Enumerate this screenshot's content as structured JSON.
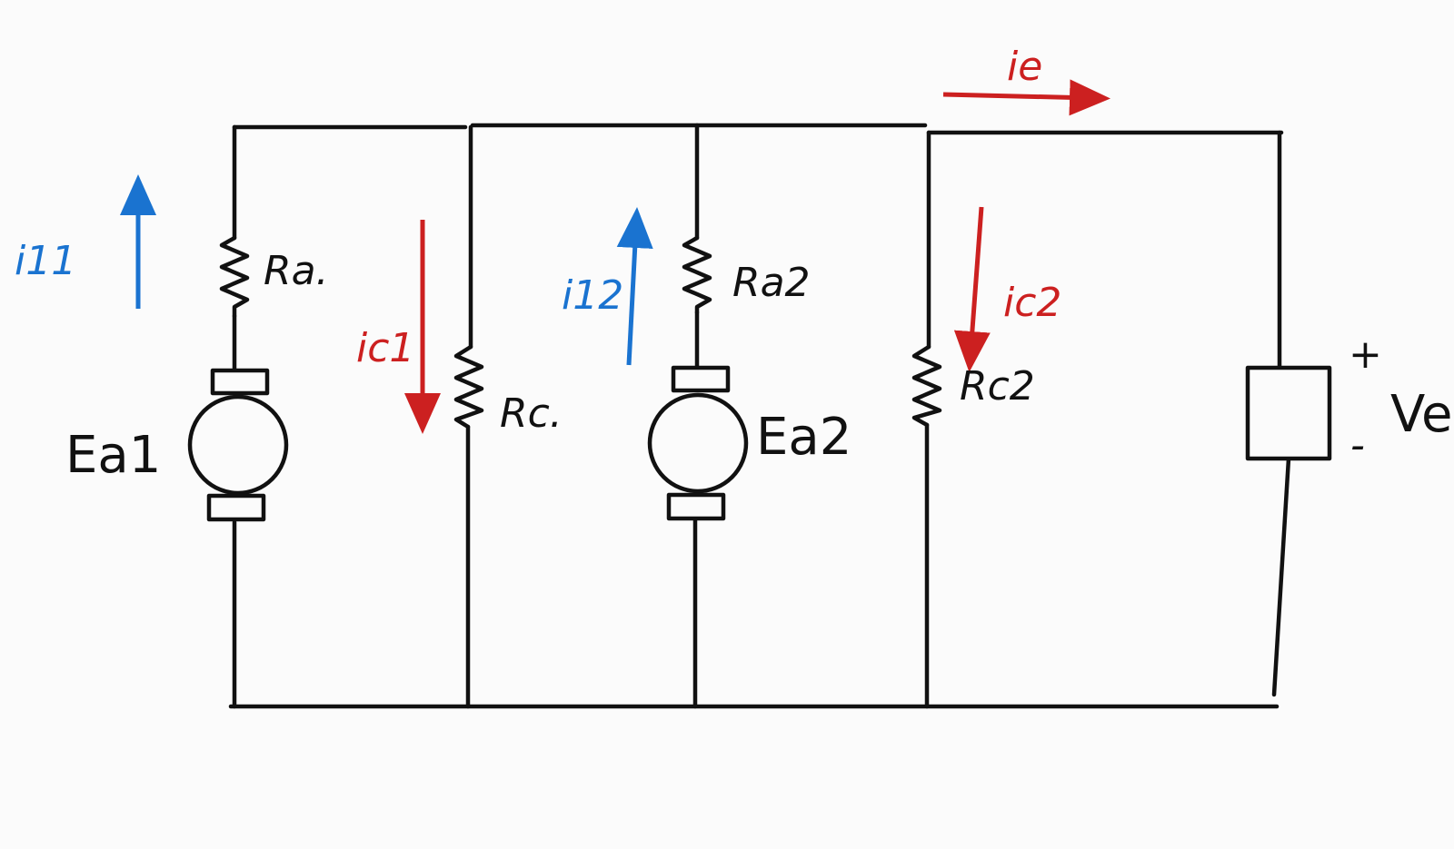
{
  "components": {
    "ra1": "Ra.",
    "ra2": "Ra2",
    "rc1": "Rc.",
    "rc2": "Rc2",
    "ea1": "Ea1",
    "ea2": "Ea2",
    "load": "Ve",
    "plus": "+",
    "minus": "-"
  },
  "currents": {
    "ia1": "i11",
    "ia2": "i12",
    "ic1": "ic1",
    "ic2": "ic2",
    "ie": "ie"
  },
  "colors": {
    "ink": "#111111",
    "armature_current": "#1a73d0",
    "field_current": "#cc2020",
    "background": "#fbfbfb"
  }
}
